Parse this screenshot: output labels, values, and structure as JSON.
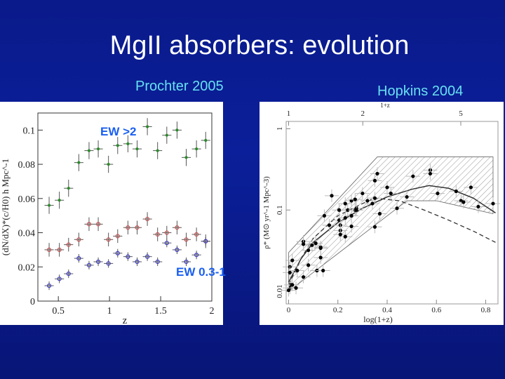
{
  "slide": {
    "title": "MgII absorbers: evolution",
    "left_source": "Prochter 2005",
    "right_source": "Hopkins 2004",
    "background_color": "#0b1f9a",
    "subtitle_color": "#66e0f0"
  },
  "chart_data": [
    {
      "type": "scatter",
      "xlabel": "z",
      "ylabel": "(dN/dX)*(c/H0) h Mpc^-1",
      "xlim": [
        0.3,
        2.0
      ],
      "ylim": [
        0,
        0.11
      ],
      "xticks": [
        "0.5",
        "1",
        "1.5",
        "2"
      ],
      "xtick_values": [
        0.5,
        1,
        1.5,
        2
      ],
      "yticks": [
        "0",
        "0.02",
        "0.04",
        "0.06",
        "0.08",
        "0.1"
      ],
      "ytick_values": [
        0,
        0.02,
        0.04,
        0.06,
        0.08,
        0.1
      ],
      "annotations": [
        "EW >2",
        "EW 0.3-1"
      ],
      "x": [
        0.41,
        0.51,
        0.6,
        0.7,
        0.8,
        0.89,
        0.99,
        1.08,
        1.18,
        1.27,
        1.37,
        1.47,
        1.56,
        1.66,
        1.75,
        1.85,
        1.94
      ],
      "series": [
        {
          "color": "#2a8a2a",
          "yerr": 0.005,
          "values": [
            0.056,
            0.059,
            0.066,
            0.081,
            0.088,
            0.089,
            0.08,
            0.091,
            0.092,
            0.089,
            0.102,
            0.088,
            0.097,
            0.1,
            0.084,
            0.089,
            0.094
          ]
        },
        {
          "color": "#c05050",
          "yerr": 0.004,
          "values": [
            0.03,
            0.03,
            0.033,
            0.036,
            0.045,
            0.045,
            0.036,
            0.038,
            0.043,
            0.043,
            0.048,
            0.039,
            0.04,
            0.043,
            0.036,
            0.039,
            0.035
          ]
        },
        {
          "color": "#3a3ac0",
          "yerr": 0.0025,
          "values": [
            0.009,
            0.013,
            0.016,
            0.025,
            0.021,
            0.023,
            0.022,
            0.028,
            0.026,
            0.023,
            0.026,
            0.023,
            0.034,
            0.03,
            0.023,
            0.027,
            0.035
          ]
        }
      ]
    },
    {
      "type": "scatter",
      "xlabel": "log(1+z)",
      "ylabel": "ρ* (M⊙ yr^-1 Mpc^-3)",
      "top_axis_label": "1+z",
      "top_ticks": [
        "1",
        "2",
        "5"
      ],
      "top_tick_values": [
        1,
        2,
        5
      ],
      "xlim": [
        -0.01,
        0.85
      ],
      "ylim": [
        0.007,
        1.23
      ],
      "yscale": "log",
      "xticks": [
        "0",
        "0.2",
        "0.4",
        "0.6",
        "0.8"
      ],
      "xtick_values": [
        0,
        0.2,
        0.4,
        0.6,
        0.8
      ],
      "yticks": [
        "0.01",
        "0.1",
        "1"
      ],
      "ytick_values": [
        0.01,
        0.1,
        1
      ],
      "points": [
        [
          0.005,
          0.011
        ],
        [
          0.01,
          0.012
        ],
        [
          0.015,
          0.012
        ],
        [
          0.03,
          0.011
        ],
        [
          0.0,
          0.0103
        ],
        [
          0.005,
          0.02
        ],
        [
          0.005,
          0.017
        ],
        [
          0.015,
          0.024
        ],
        [
          0.035,
          0.018
        ],
        [
          0.06,
          0.015
        ],
        [
          0.06,
          0.041
        ],
        [
          0.06,
          0.038
        ],
        [
          0.08,
          0.032
        ],
        [
          0.08,
          0.021
        ],
        [
          0.095,
          0.037
        ],
        [
          0.11,
          0.039
        ],
        [
          0.115,
          0.018
        ],
        [
          0.13,
          0.035
        ],
        [
          0.13,
          0.034
        ],
        [
          0.13,
          0.026
        ],
        [
          0.14,
          0.018
        ],
        [
          0.145,
          0.085
        ],
        [
          0.165,
          0.065
        ],
        [
          0.175,
          0.15
        ],
        [
          0.205,
          0.1
        ],
        [
          0.205,
          0.075
        ],
        [
          0.21,
          0.065
        ],
        [
          0.21,
          0.056
        ],
        [
          0.21,
          0.05
        ],
        [
          0.23,
          0.12
        ],
        [
          0.23,
          0.08
        ],
        [
          0.23,
          0.047
        ],
        [
          0.24,
          0.1
        ],
        [
          0.255,
          0.13
        ],
        [
          0.255,
          0.085
        ],
        [
          0.255,
          0.063
        ],
        [
          0.27,
          0.135
        ],
        [
          0.27,
          0.1
        ],
        [
          0.275,
          0.105
        ],
        [
          0.275,
          0.1
        ],
        [
          0.3,
          0.16
        ],
        [
          0.32,
          0.13
        ],
        [
          0.34,
          0.12
        ],
        [
          0.35,
          0.23
        ],
        [
          0.35,
          0.14
        ],
        [
          0.35,
          0.062
        ],
        [
          0.36,
          0.28
        ],
        [
          0.37,
          0.09
        ],
        [
          0.4,
          0.19
        ],
        [
          0.415,
          0.16
        ],
        [
          0.44,
          0.105
        ],
        [
          0.48,
          0.145
        ],
        [
          0.505,
          0.26
        ],
        [
          0.575,
          0.31
        ],
        [
          0.575,
          0.28
        ],
        [
          0.605,
          0.16
        ],
        [
          0.68,
          0.17
        ],
        [
          0.7,
          0.13
        ],
        [
          0.71,
          0.125
        ],
        [
          0.74,
          0.19
        ],
        [
          0.77,
          0.11
        ],
        [
          0.83,
          0.12
        ]
      ],
      "solid_curve": [
        [
          0.0,
          0.013
        ],
        [
          0.05,
          0.025
        ],
        [
          0.1,
          0.04
        ],
        [
          0.2,
          0.07
        ],
        [
          0.3,
          0.105
        ],
        [
          0.4,
          0.145
        ],
        [
          0.5,
          0.18
        ],
        [
          0.57,
          0.2
        ],
        [
          0.65,
          0.185
        ],
        [
          0.75,
          0.14
        ],
        [
          0.84,
          0.092
        ]
      ],
      "dashed_curve": [
        [
          0.0,
          0.012
        ],
        [
          0.05,
          0.025
        ],
        [
          0.1,
          0.045
        ],
        [
          0.2,
          0.085
        ],
        [
          0.3,
          0.12
        ],
        [
          0.35,
          0.14
        ],
        [
          0.45,
          0.13
        ],
        [
          0.55,
          0.1
        ],
        [
          0.65,
          0.075
        ],
        [
          0.75,
          0.055
        ],
        [
          0.84,
          0.04
        ]
      ],
      "hatched_band": [
        [
          0.0,
          0.01
        ],
        [
          0.0,
          0.03
        ],
        [
          0.36,
          0.45
        ],
        [
          0.83,
          0.45
        ],
        [
          0.83,
          0.09
        ],
        [
          0.6,
          0.13
        ],
        [
          0.48,
          0.13
        ],
        [
          0.0,
          0.01
        ]
      ]
    }
  ]
}
